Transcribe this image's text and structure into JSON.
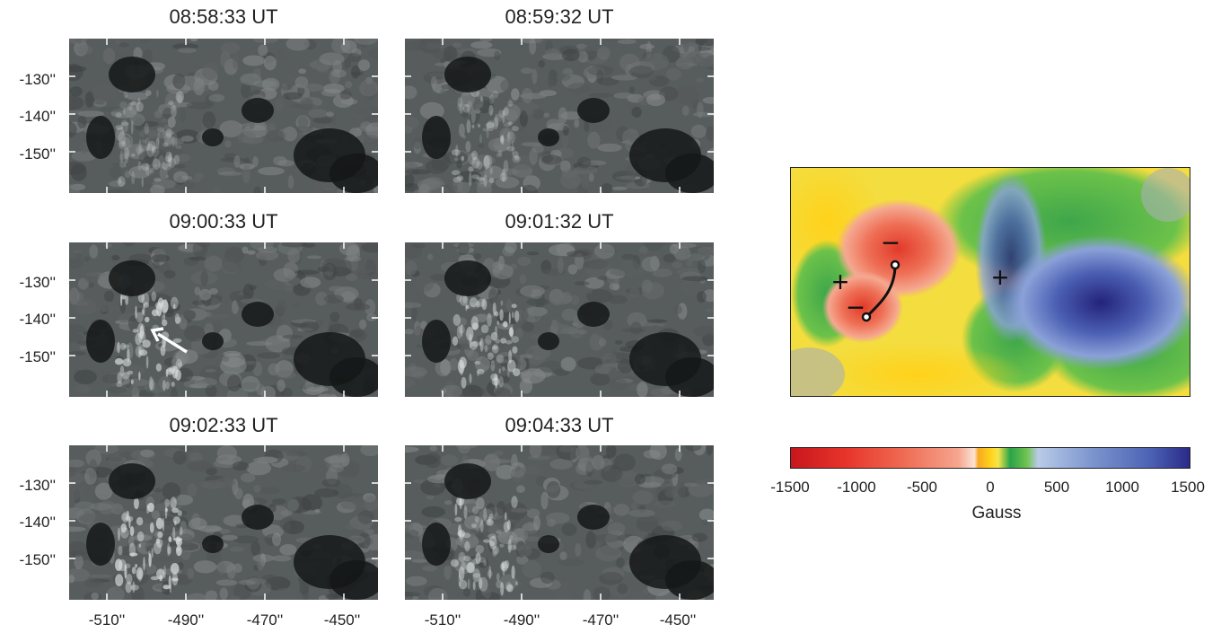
{
  "panels": [
    {
      "time": "08:58:33 UT"
    },
    {
      "time": "08:59:32 UT"
    },
    {
      "time": "09:00:33 UT"
    },
    {
      "time": "09:01:32 UT"
    },
    {
      "time": "09:02:33 UT"
    },
    {
      "time": "09:04:33 UT"
    }
  ],
  "y_ticks": [
    "-130''",
    "-140''",
    "-150''"
  ],
  "x_ticks": [
    "-510''",
    "-490''",
    "-470''",
    "-450''"
  ],
  "colorbar": {
    "ticks": [
      "-1500",
      "-1000",
      "-500",
      "0",
      "500",
      "1000",
      "1500"
    ],
    "label": "Gauss"
  },
  "polarity_marks": {
    "plus": "+",
    "minus": "−"
  }
}
